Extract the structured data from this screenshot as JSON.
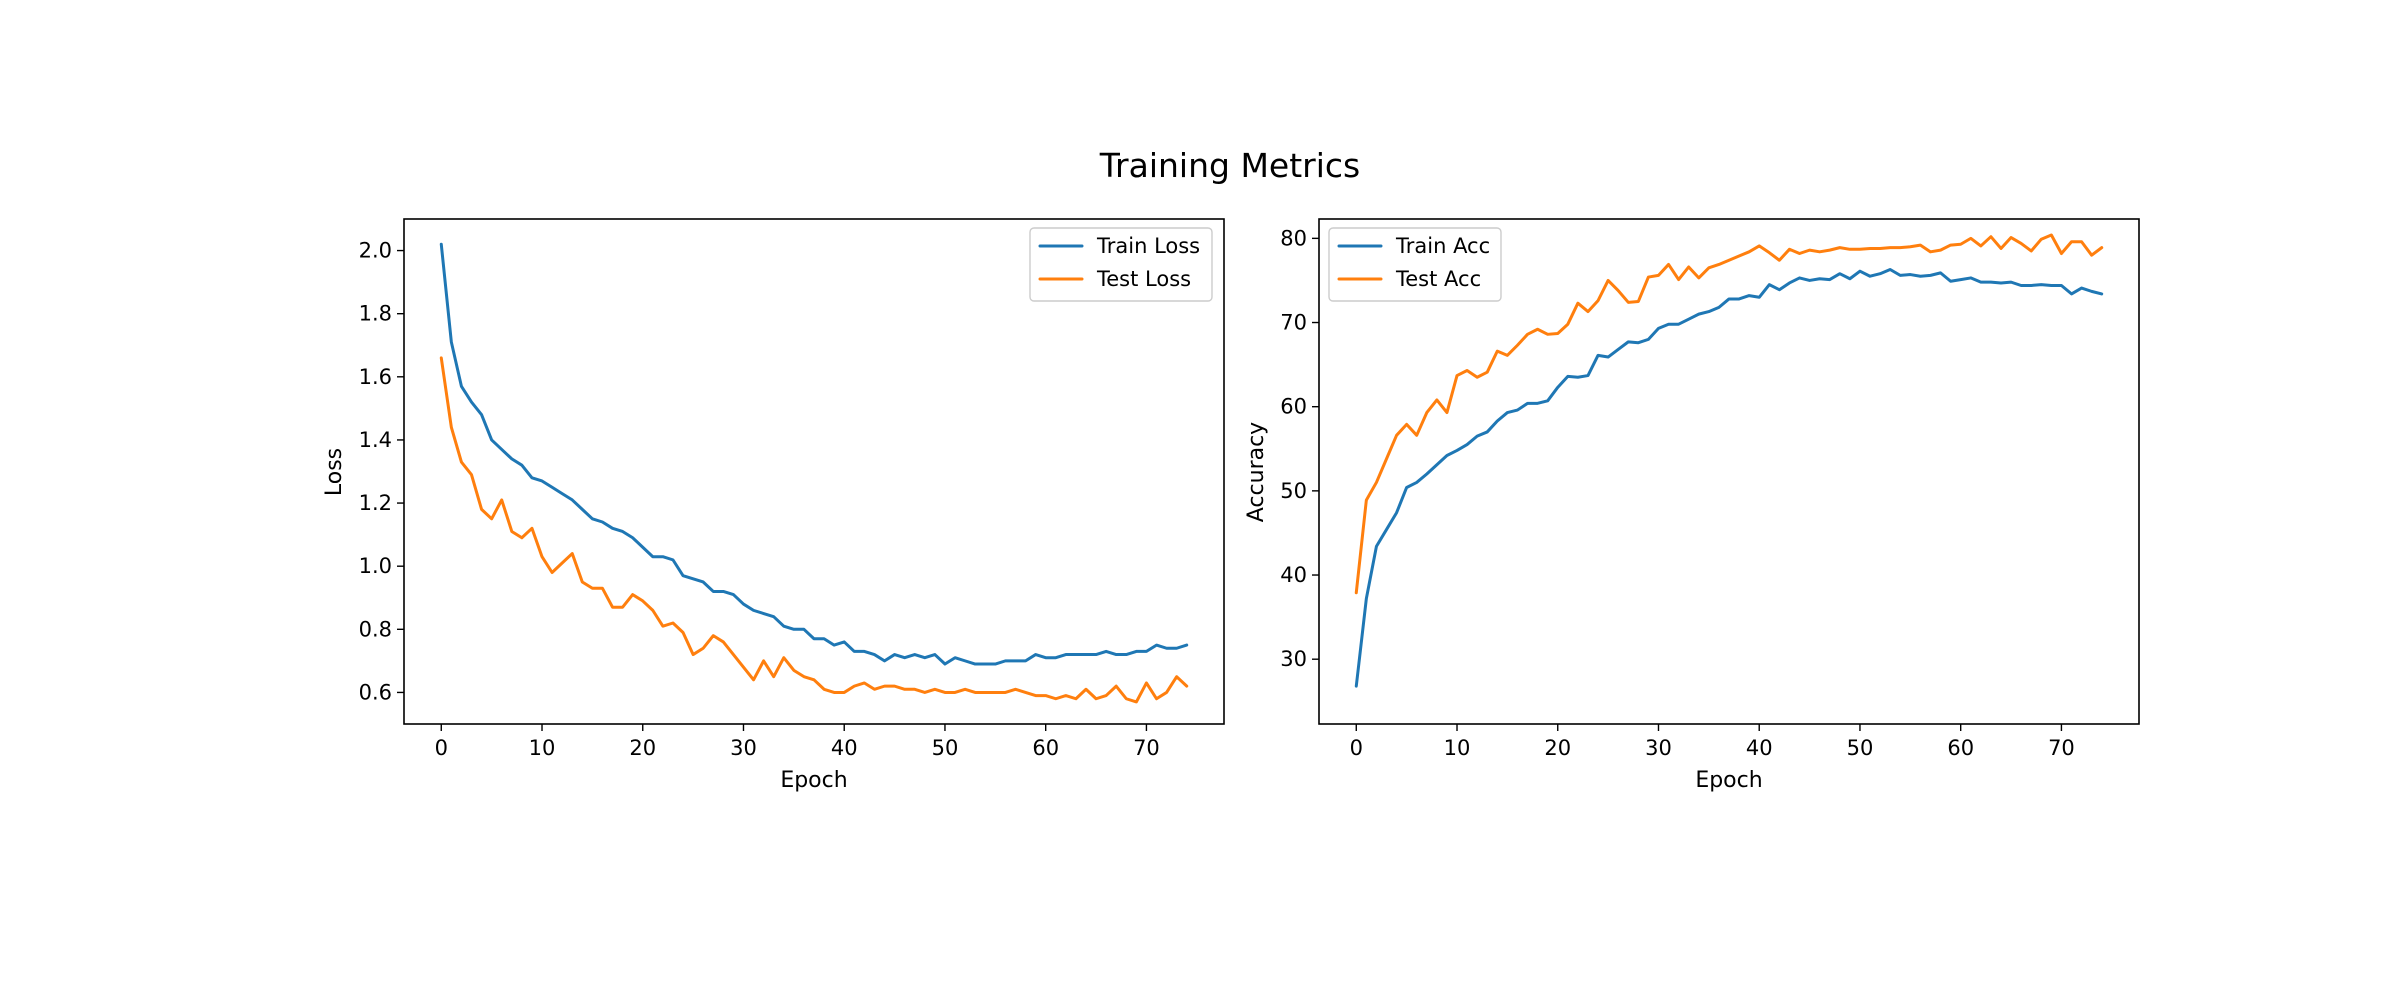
{
  "figure": {
    "title": "Training Metrics"
  },
  "chart_data": [
    {
      "type": "line",
      "xlabel": "Epoch",
      "ylabel": "Loss",
      "xlim": [
        -3.7,
        77.7
      ],
      "ylim": [
        0.5,
        2.1
      ],
      "xticks": [
        0,
        10,
        20,
        30,
        40,
        50,
        60,
        70
      ],
      "yticks": [
        0.6,
        0.8,
        1.0,
        1.2,
        1.4,
        1.6,
        1.8,
        2.0
      ],
      "yprecision": 1,
      "grid": false,
      "legend_position": "top-right",
      "series": [
        {
          "name": "Train Loss",
          "color": "#1f77b4",
          "x": [
            0,
            1,
            2,
            3,
            4,
            5,
            6,
            7,
            8,
            9,
            10,
            11,
            12,
            13,
            14,
            15,
            16,
            17,
            18,
            19,
            20,
            21,
            22,
            23,
            24,
            25,
            26,
            27,
            28,
            29,
            30,
            31,
            32,
            33,
            34,
            35,
            36,
            37,
            38,
            39,
            40,
            41,
            42,
            43,
            44,
            45,
            46,
            47,
            48,
            49,
            50,
            51,
            52,
            53,
            54,
            55,
            56,
            57,
            58,
            59,
            60,
            61,
            62,
            63,
            64,
            65,
            66,
            67,
            68,
            69,
            70,
            71,
            72,
            73,
            74
          ],
          "values": [
            2.02,
            1.71,
            1.57,
            1.52,
            1.48,
            1.4,
            1.37,
            1.34,
            1.32,
            1.28,
            1.27,
            1.25,
            1.23,
            1.21,
            1.18,
            1.15,
            1.14,
            1.12,
            1.11,
            1.09,
            1.06,
            1.03,
            1.03,
            1.02,
            0.97,
            0.96,
            0.95,
            0.92,
            0.92,
            0.91,
            0.88,
            0.86,
            0.85,
            0.84,
            0.81,
            0.8,
            0.8,
            0.77,
            0.77,
            0.75,
            0.76,
            0.73,
            0.73,
            0.72,
            0.7,
            0.72,
            0.71,
            0.72,
            0.71,
            0.72,
            0.69,
            0.71,
            0.7,
            0.69,
            0.69,
            0.69,
            0.7,
            0.7,
            0.7,
            0.72,
            0.71,
            0.71,
            0.72,
            0.72,
            0.72,
            0.72,
            0.73,
            0.72,
            0.72,
            0.73,
            0.73,
            0.75,
            0.74,
            0.74,
            0.75
          ]
        },
        {
          "name": "Test Loss",
          "color": "#ff7f0e",
          "x": [
            0,
            1,
            2,
            3,
            4,
            5,
            6,
            7,
            8,
            9,
            10,
            11,
            12,
            13,
            14,
            15,
            16,
            17,
            18,
            19,
            20,
            21,
            22,
            23,
            24,
            25,
            26,
            27,
            28,
            29,
            30,
            31,
            32,
            33,
            34,
            35,
            36,
            37,
            38,
            39,
            40,
            41,
            42,
            43,
            44,
            45,
            46,
            47,
            48,
            49,
            50,
            51,
            52,
            53,
            54,
            55,
            56,
            57,
            58,
            59,
            60,
            61,
            62,
            63,
            64,
            65,
            66,
            67,
            68,
            69,
            70,
            71,
            72,
            73,
            74
          ],
          "values": [
            1.66,
            1.44,
            1.33,
            1.29,
            1.18,
            1.15,
            1.21,
            1.11,
            1.09,
            1.12,
            1.03,
            0.98,
            1.01,
            1.04,
            0.95,
            0.93,
            0.93,
            0.87,
            0.87,
            0.91,
            0.89,
            0.86,
            0.81,
            0.82,
            0.79,
            0.72,
            0.74,
            0.78,
            0.76,
            0.72,
            0.68,
            0.64,
            0.7,
            0.65,
            0.71,
            0.67,
            0.65,
            0.64,
            0.61,
            0.6,
            0.6,
            0.62,
            0.63,
            0.61,
            0.62,
            0.62,
            0.61,
            0.61,
            0.6,
            0.61,
            0.6,
            0.6,
            0.61,
            0.6,
            0.6,
            0.6,
            0.6,
            0.61,
            0.6,
            0.59,
            0.59,
            0.58,
            0.59,
            0.58,
            0.61,
            0.58,
            0.59,
            0.62,
            0.58,
            0.57,
            0.63,
            0.58,
            0.6,
            0.65,
            0.62
          ]
        }
      ]
    },
    {
      "type": "line",
      "xlabel": "Epoch",
      "ylabel": "Accuracy",
      "xlim": [
        -3.7,
        77.7
      ],
      "ylim": [
        22.3,
        82.3
      ],
      "xticks": [
        0,
        10,
        20,
        30,
        40,
        50,
        60,
        70
      ],
      "yticks": [
        30,
        40,
        50,
        60,
        70,
        80
      ],
      "yprecision": 0,
      "grid": false,
      "legend_position": "top-left",
      "series": [
        {
          "name": "Train Acc",
          "color": "#1f77b4",
          "x": [
            0,
            1,
            2,
            3,
            4,
            5,
            6,
            7,
            8,
            9,
            10,
            11,
            12,
            13,
            14,
            15,
            16,
            17,
            18,
            19,
            20,
            21,
            22,
            23,
            24,
            25,
            26,
            27,
            28,
            29,
            30,
            31,
            32,
            33,
            34,
            35,
            36,
            37,
            38,
            39,
            40,
            41,
            42,
            43,
            44,
            45,
            46,
            47,
            48,
            49,
            50,
            51,
            52,
            53,
            54,
            55,
            56,
            57,
            58,
            59,
            60,
            61,
            62,
            63,
            64,
            65,
            66,
            67,
            68,
            69,
            70,
            71,
            72,
            73,
            74
          ],
          "values": [
            26.8,
            37.2,
            43.4,
            45.4,
            47.4,
            50.4,
            51.0,
            52.0,
            53.1,
            54.2,
            54.8,
            55.5,
            56.5,
            57.0,
            58.3,
            59.3,
            59.6,
            60.4,
            60.4,
            60.7,
            62.3,
            63.6,
            63.5,
            63.7,
            66.1,
            65.9,
            66.8,
            67.7,
            67.6,
            68.0,
            69.3,
            69.8,
            69.8,
            70.4,
            71.0,
            71.3,
            71.8,
            72.8,
            72.8,
            73.2,
            73.0,
            74.5,
            73.9,
            74.7,
            75.3,
            75.0,
            75.2,
            75.1,
            75.8,
            75.2,
            76.1,
            75.5,
            75.8,
            76.3,
            75.6,
            75.7,
            75.5,
            75.6,
            75.9,
            74.9,
            75.1,
            75.3,
            74.8,
            74.8,
            74.7,
            74.8,
            74.4,
            74.4,
            74.5,
            74.4,
            74.4,
            73.4,
            74.1,
            73.7,
            73.4
          ]
        },
        {
          "name": "Test Acc",
          "color": "#ff7f0e",
          "x": [
            0,
            1,
            2,
            3,
            4,
            5,
            6,
            7,
            8,
            9,
            10,
            11,
            12,
            13,
            14,
            15,
            16,
            17,
            18,
            19,
            20,
            21,
            22,
            23,
            24,
            25,
            26,
            27,
            28,
            29,
            30,
            31,
            32,
            33,
            34,
            35,
            36,
            37,
            38,
            39,
            40,
            41,
            42,
            43,
            44,
            45,
            46,
            47,
            48,
            49,
            50,
            51,
            52,
            53,
            54,
            55,
            56,
            57,
            58,
            59,
            60,
            61,
            62,
            63,
            64,
            65,
            66,
            67,
            68,
            69,
            70,
            71,
            72,
            73,
            74
          ],
          "values": [
            37.9,
            48.9,
            51.0,
            53.8,
            56.6,
            57.9,
            56.6,
            59.3,
            60.8,
            59.3,
            63.7,
            64.3,
            63.5,
            64.1,
            66.6,
            66.1,
            67.3,
            68.6,
            69.2,
            68.6,
            68.7,
            69.8,
            72.3,
            71.3,
            72.6,
            75.0,
            73.8,
            72.4,
            72.5,
            75.4,
            75.6,
            76.9,
            75.1,
            76.6,
            75.3,
            76.5,
            76.9,
            77.4,
            77.9,
            78.4,
            79.1,
            78.3,
            77.4,
            78.7,
            78.2,
            78.6,
            78.4,
            78.6,
            78.9,
            78.7,
            78.7,
            78.8,
            78.8,
            78.9,
            78.9,
            79.0,
            79.2,
            78.4,
            78.6,
            79.2,
            79.3,
            80.0,
            79.1,
            80.2,
            78.8,
            80.1,
            79.4,
            78.5,
            79.9,
            80.4,
            78.2,
            79.6,
            79.6,
            78.0,
            78.9
          ]
        }
      ]
    }
  ]
}
